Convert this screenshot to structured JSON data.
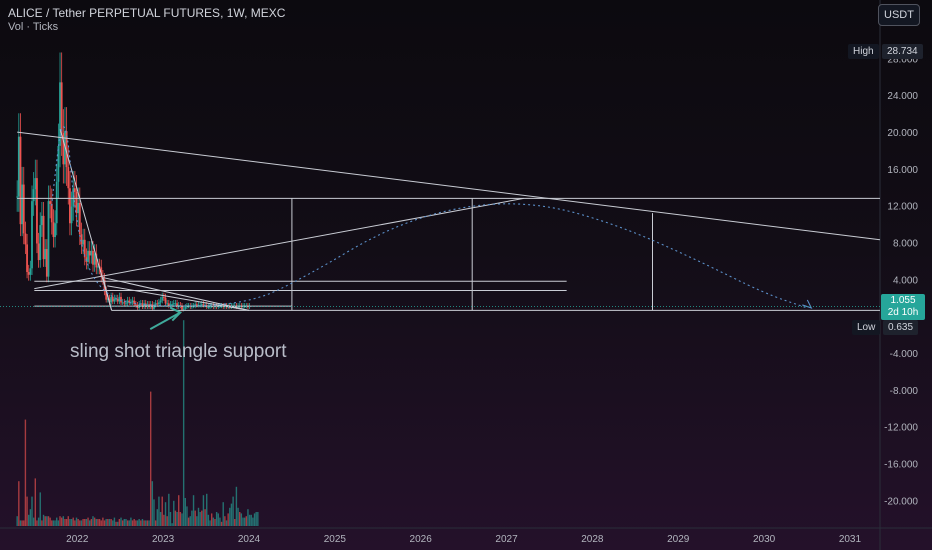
{
  "header": {
    "title": "ALICE / Tether PERPETUAL FUTURES, 1W, MEXC",
    "subtitle": "Vol · Ticks"
  },
  "toolbar": {
    "currency_label": "USDT"
  },
  "price_tags": {
    "high_label": "High",
    "high_value": "28.734",
    "low_label": "Low",
    "low_value": "0.635",
    "last_price": "1.055",
    "countdown": "2d 10h"
  },
  "annotation": "sling shot triangle support",
  "colors": {
    "up": "#26a69a",
    "down": "#ef5350",
    "drawing": "#c9ccd4",
    "arc": "#5b8fc9",
    "last_price": "#26a69a"
  },
  "chart_data": {
    "type": "candlestick",
    "title": "ALICE / Tether PERPETUAL FUTURES, 1W, MEXC",
    "y_ticks": [
      "-20.000",
      "-16.000",
      "-12.000",
      "-8.000",
      "-4.000",
      "4.000",
      "8.000",
      "12.000",
      "16.000",
      "20.000",
      "24.000",
      "28.000"
    ],
    "y_tick_values": [
      -20,
      -16,
      -12,
      -8,
      -4,
      4,
      8,
      12,
      16,
      20,
      24,
      28
    ],
    "x_ticks": [
      "2022",
      "2023",
      "2024",
      "2025",
      "2026",
      "2027",
      "2028",
      "2029",
      "2030",
      "2031"
    ],
    "x_tick_values": [
      2022,
      2023,
      2024,
      2025,
      2026,
      2027,
      2028,
      2029,
      2030,
      2031
    ],
    "ylim": [
      -23,
      30
    ],
    "xlim": [
      2021.1,
      2031.35
    ],
    "price": {
      "first_date": 2021.3,
      "week_step": 0.0192,
      "closes": [
        13,
        19.5,
        10,
        14.3,
        9,
        7.8,
        4.8,
        4.5,
        5.2,
        12.5,
        13.8,
        15,
        7.9,
        6.1,
        9.9,
        10.9,
        6.2,
        7.3,
        4.3,
        12.5,
        12.2,
        10.2,
        8.6,
        10.1,
        14.6,
        18.5,
        25.4,
        19.9,
        16.5,
        20.1,
        16.2,
        13.9,
        10.1,
        11.9,
        13.9,
        13.5,
        11.2,
        12.3,
        8.9,
        7.8,
        8.3,
        6.4,
        5.9,
        7.1,
        6.6,
        7.1,
        5.6,
        6.8,
        5.3,
        5.4,
        5.3,
        4.3,
        4,
        2.7,
        1.8,
        1.9,
        1.5,
        2.1,
        1.6,
        1.9,
        1.9,
        1.6,
        2.1,
        1.5,
        1.5,
        1.4,
        1.4,
        1.7,
        1.5,
        1.5,
        1.7,
        1.3,
        1.2,
        0.9,
        1.3,
        1.4,
        1,
        1.4,
        1,
        1.3,
        1,
        1.3,
        0.8,
        1.2,
        1.4,
        1.3,
        1.5,
        1.7,
        2.1,
        2,
        1.4,
        1.4,
        1.1,
        1.3,
        1.3,
        1.4,
        1.4,
        1,
        1.2,
        1.1,
        0.7,
        0.8,
        1,
        1.1,
        1.1,
        1,
        1.1,
        1.1,
        1.3,
        1.2,
        1.2,
        1.2,
        1.3,
        1.2,
        1.2,
        1,
        1,
        1.1,
        1.1,
        1,
        1.1,
        1,
        1.1,
        1.1,
        1.1,
        1,
        1.1,
        1,
        1.1,
        1,
        1.1,
        1.1,
        1.1,
        1,
        1.1,
        1.1,
        1,
        1.1,
        1.1,
        1.1,
        1,
        1.1
      ]
    },
    "volume": {
      "first_date": 2021.3,
      "week_step": 0.0192,
      "values": [
        0.07,
        0.32,
        0.04,
        0.04,
        0.04,
        0.76,
        0.21,
        0.08,
        0.12,
        0.21,
        0.06,
        0.34,
        0.04,
        0.06,
        0.24,
        0.04,
        0.08,
        0.07,
        0.07,
        0.07,
        0.06,
        0.04,
        0.04,
        0.04,
        0.06,
        0.04,
        0.07,
        0.06,
        0.07,
        0.05,
        0.05,
        0.07,
        0.05,
        0.05,
        0.06,
        0.04,
        0.06,
        0.05,
        0.04,
        0.04,
        0.05,
        0.05,
        0.05,
        0.06,
        0.04,
        0.05,
        0.07,
        0.06,
        0.05,
        0.05,
        0.05,
        0.04,
        0.06,
        0.04,
        0.05,
        0.05,
        0.05,
        0.05,
        0.04,
        0.06,
        0.03,
        0.03,
        0.05,
        0.06,
        0.04,
        0.05,
        0.05,
        0.04,
        0.04,
        0.06,
        0.04,
        0.05,
        0.04,
        0.04,
        0.05,
        0.04,
        0.05,
        0.04,
        0.04,
        0.04,
        0.04,
        0.96,
        0.32,
        0.19,
        0.04,
        0.12,
        0.21,
        0.1,
        0.21,
        0.08,
        0.17,
        0.07,
        0.23,
        0.1,
        0.02,
        0.18,
        0.11,
        0.1,
        0.22,
        0.1,
        0.09,
        1.47,
        0.2,
        0.14,
        0.06,
        0.07,
        0.11,
        0.22,
        0.11,
        0.07,
        0.13,
        0.1,
        0.11,
        0.22,
        0.12,
        0.23,
        0.08,
        0.04,
        0.09,
        0.06,
        0.05,
        0.1,
        0.09,
        0.06,
        0.03,
        0.17,
        0.07,
        0.04,
        0.09,
        0.13,
        0.16,
        0.21,
        0.05,
        0.28,
        0.13,
        0.1,
        0.09,
        0.06,
        0.06,
        0.07,
        0.12,
        0.08,
        0.08,
        0.06,
        0.09,
        0.1,
        0.1
      ]
    },
    "drawings": {
      "horizontal_levels": [
        {
          "y": 12.8,
          "x1": 2021.3,
          "x2": 2031.35
        },
        {
          "y": 3.8,
          "x1": 2021.5,
          "x2": 2027.7
        },
        {
          "y": 2.8,
          "x1": 2021.5,
          "x2": 2027.7
        },
        {
          "y": 1.1,
          "x1": 2021.5,
          "x2": 2024.5
        },
        {
          "y": 0.635,
          "x1": 2022.4,
          "x2": 2031.35
        }
      ],
      "vertical_markers": [
        {
          "x": 2024.5,
          "y1": 0.635,
          "y2": 12.8
        },
        {
          "x": 2026.6,
          "y1": 0.635,
          "y2": 12.8
        },
        {
          "x": 2028.7,
          "y1": 0.635,
          "y2": 11.2
        }
      ],
      "trendlines": [
        {
          "from": [
            2021.3,
            20
          ],
          "to": [
            2031.35,
            8.3
          ]
        },
        {
          "from": [
            2021.5,
            3
          ],
          "to": [
            2027.2,
            12.8
          ]
        },
        {
          "from": [
            2022.3,
            4.2
          ],
          "to": [
            2024.0,
            0.635
          ]
        },
        {
          "from": [
            2022.3,
            4.2
          ],
          "to": [
            2022.4,
            0.635
          ]
        },
        {
          "from": [
            2022.35,
            3.3
          ],
          "to": [
            2024.0,
            0.635
          ]
        },
        {
          "from": [
            2021.8,
            20.3
          ],
          "to": [
            2022.4,
            0.635
          ]
        }
      ],
      "arc": [
        [
          2021.7,
          12
        ],
        [
          2021.85,
          24
        ],
        [
          2022.0,
          8
        ],
        [
          2022.3,
          2
        ],
        [
          2022.9,
          1
        ],
        [
          2024.0,
          1.3
        ],
        [
          2024.7,
          4.5
        ],
        [
          2025.6,
          9.5
        ],
        [
          2026.5,
          12.1
        ],
        [
          2027.4,
          12.3
        ],
        [
          2028.3,
          9.9
        ],
        [
          2029.2,
          6.2
        ],
        [
          2030.0,
          2.5
        ],
        [
          2030.5,
          0.9
        ]
      ],
      "arc_arrowhead": [
        2030.55,
        0.9
      ],
      "arrow": {
        "from": [
          2022.85,
          -1.4
        ],
        "to": [
          2023.2,
          0.4
        ]
      }
    }
  }
}
